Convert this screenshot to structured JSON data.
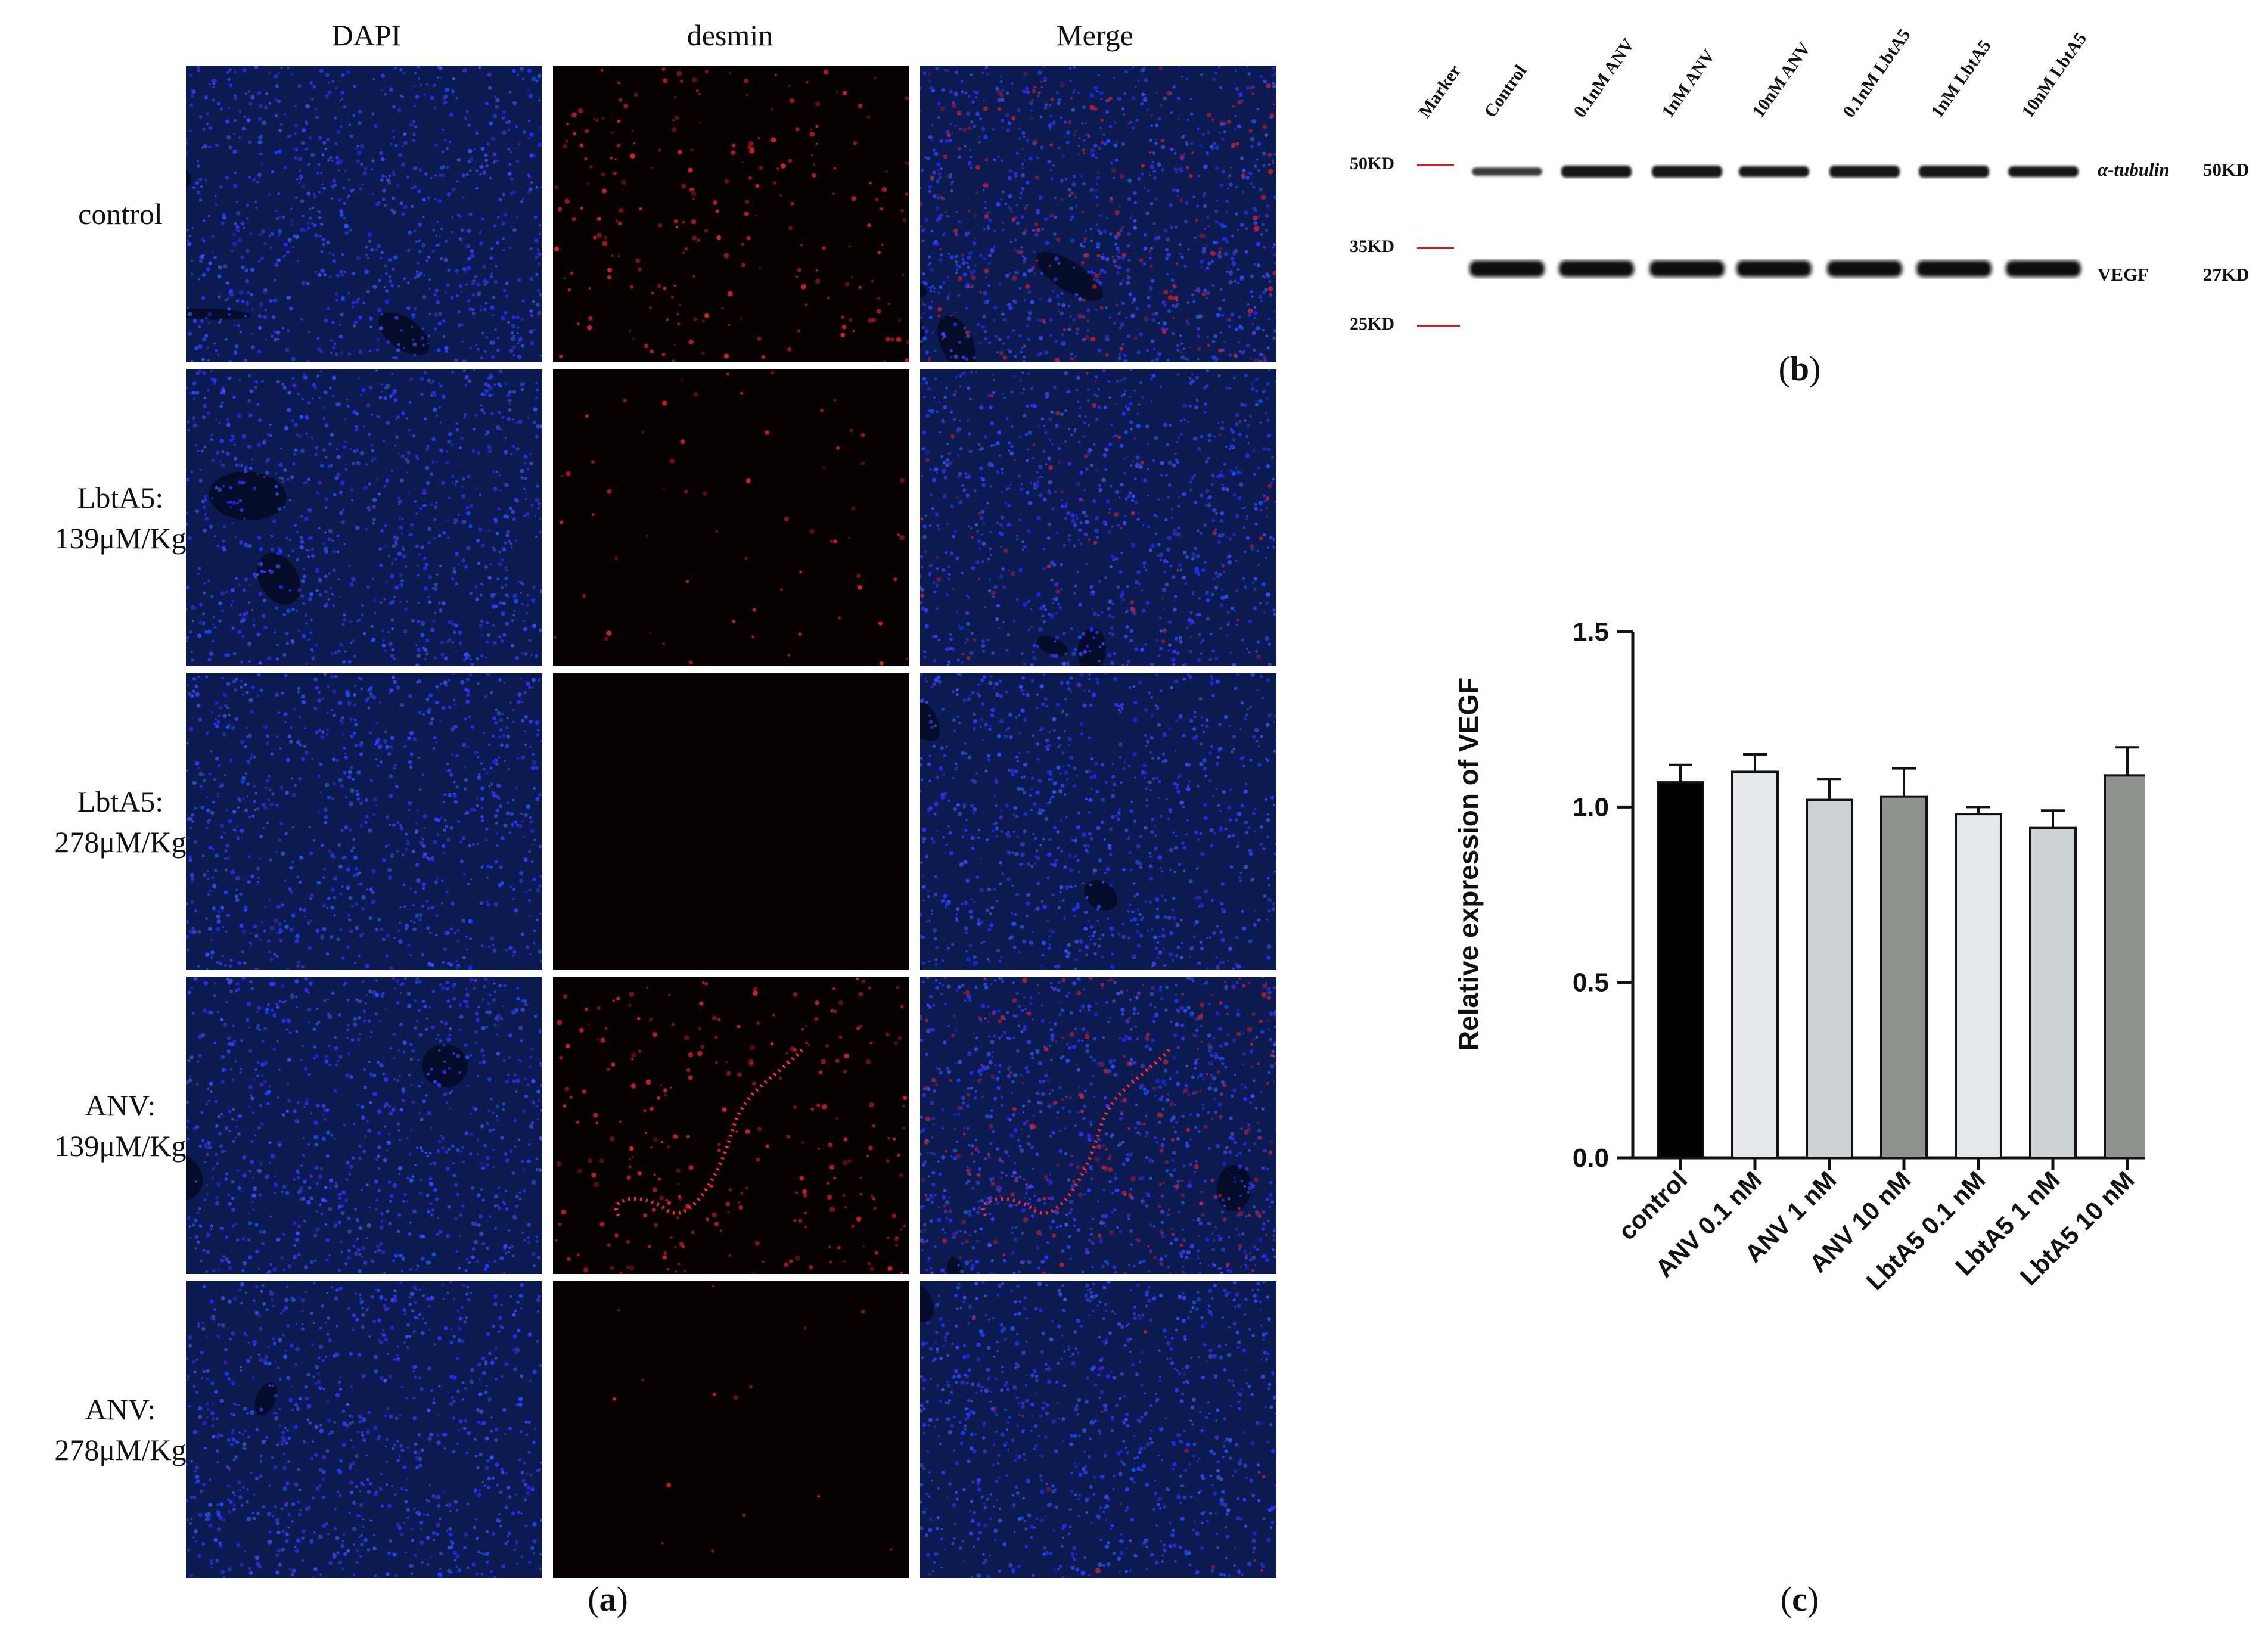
{
  "panel_a": {
    "columns": [
      "DAPI",
      "desmin",
      "Merge"
    ],
    "rows": [
      {
        "label_lines": [
          "control"
        ]
      },
      {
        "label_lines": [
          "LbtA5:",
          "139μM/Kg"
        ]
      },
      {
        "label_lines": [
          "LbtA5:",
          "278μM/Kg"
        ]
      },
      {
        "label_lines": [
          "ANV:",
          "139μM/Kg"
        ]
      },
      {
        "label_lines": [
          "ANV:",
          "278μM/Kg"
        ]
      }
    ],
    "caption_letter": "a"
  },
  "panel_b": {
    "lanes": [
      "Marker",
      "Control",
      "0.1nM ANV",
      "1nM ANV",
      "10nM ANV",
      "0.1nM LbtA5",
      "1nM LbtA5",
      "10nM LbtA5"
    ],
    "markers": [
      "50KD",
      "35KD",
      "25KD"
    ],
    "bands": [
      {
        "protein": "α-tubulin",
        "size": "50KD"
      },
      {
        "protein": "VEGF",
        "size": "27KD"
      }
    ],
    "marker_color": "#cc1f1f",
    "caption_letter": "b"
  },
  "panel_c": {
    "caption_letter": "c"
  },
  "chart_data": {
    "type": "bar",
    "categories": [
      "control",
      "ANV 0.1 nM",
      "ANV 1 nM",
      "ANV 10 nM",
      "LbtA5 0.1 nM",
      "LbtA5 1 nM",
      "LbtA5 10 nM"
    ],
    "values": [
      1.07,
      1.1,
      1.02,
      1.03,
      0.98,
      0.94,
      1.09
    ],
    "errors": [
      0.05,
      0.05,
      0.06,
      0.08,
      0.02,
      0.05,
      0.08
    ],
    "colors": [
      "#000000",
      "#e5e8ea",
      "#cfd2d4",
      "#8f918f",
      "#e5e8ea",
      "#cfd2d4",
      "#8f918f"
    ],
    "ylabel": "Relative expression of VEGF",
    "ylim": [
      0,
      1.5
    ],
    "yticks": [
      "0.0",
      "0.5",
      "1.0",
      "1.5"
    ],
    "grid": false
  }
}
